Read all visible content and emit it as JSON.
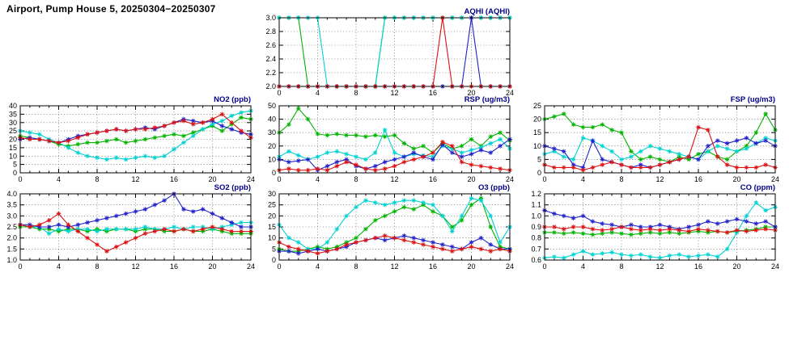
{
  "page_title": "Airport, Pump House 5, 20250304−20250307",
  "colors": {
    "green": "#00b400",
    "cyan": "#00d2d2",
    "blue": "#2222cc",
    "red": "#dd1111"
  },
  "chart_data": [
    {
      "id": "aqhi",
      "type": "line",
      "title": "AQHI (AQHI)",
      "xlim": [
        0,
        24
      ],
      "xticks": [
        0,
        4,
        8,
        12,
        16,
        20,
        24
      ],
      "ylim": [
        2.0,
        3.0
      ],
      "yticks": [
        2.0,
        2.2,
        2.4,
        2.6,
        2.8,
        3.0
      ],
      "ylabels": [
        "2.0",
        "2.2",
        "2.4",
        "2.6",
        "2.8",
        "3.0"
      ],
      "series": [
        {
          "name": "green",
          "color": "green",
          "values": [
            3,
            3,
            3,
            2,
            2,
            2,
            2,
            2,
            2,
            2,
            2,
            3,
            3,
            3,
            3,
            3,
            3,
            3,
            3,
            3,
            3,
            3,
            3,
            3,
            3
          ]
        },
        {
          "name": "cyan",
          "color": "cyan",
          "values": [
            3,
            3,
            3,
            3,
            3,
            2,
            2,
            2,
            2,
            2,
            2,
            3,
            3,
            3,
            3,
            3,
            3,
            3,
            3,
            3,
            3,
            3,
            3,
            3,
            3
          ]
        },
        {
          "name": "blue",
          "color": "blue",
          "values": [
            2,
            2,
            2,
            2,
            2,
            2,
            2,
            2,
            2,
            2,
            2,
            2,
            2,
            2,
            2,
            2,
            2,
            2,
            2,
            2,
            3,
            2,
            2,
            2,
            2
          ]
        },
        {
          "name": "red",
          "color": "red",
          "values": [
            2,
            2,
            2,
            2,
            2,
            2,
            2,
            2,
            2,
            2,
            2,
            2,
            2,
            2,
            2,
            2,
            2,
            3,
            2,
            2,
            2,
            2,
            2,
            2,
            2
          ]
        }
      ]
    },
    {
      "id": "no2",
      "type": "line",
      "title": "NO2 (ppb)",
      "xlim": [
        0,
        24
      ],
      "xticks": [
        0,
        4,
        8,
        12,
        16,
        20,
        24
      ],
      "ylim": [
        0,
        40
      ],
      "yticks": [
        0,
        5,
        10,
        15,
        20,
        25,
        30,
        35,
        40
      ],
      "ylabels": [
        "0",
        "5",
        "10",
        "15",
        "20",
        "25",
        "30",
        "35",
        "40"
      ],
      "series": [
        {
          "name": "green",
          "color": "green",
          "values": [
            22,
            21,
            20,
            19,
            17,
            16,
            17,
            18,
            18,
            19,
            20,
            18,
            19,
            20,
            21,
            22,
            23,
            22,
            24,
            26,
            28,
            25,
            29,
            33,
            32
          ]
        },
        {
          "name": "cyan",
          "color": "cyan",
          "values": [
            25,
            24,
            23,
            20,
            18,
            15,
            12,
            10,
            9,
            8,
            9,
            8,
            9,
            10,
            9,
            10,
            14,
            18,
            22,
            26,
            29,
            31,
            34,
            36,
            37
          ]
        },
        {
          "name": "blue",
          "color": "blue",
          "values": [
            20,
            21,
            20,
            19,
            18,
            20,
            22,
            23,
            24,
            25,
            26,
            25,
            26,
            27,
            26,
            28,
            30,
            32,
            31,
            30,
            31,
            28,
            26,
            24,
            23
          ]
        },
        {
          "name": "red",
          "color": "red",
          "values": [
            21,
            20,
            20,
            19,
            18,
            19,
            21,
            23,
            24,
            25,
            26,
            25,
            26,
            26,
            27,
            28,
            30,
            31,
            29,
            30,
            32,
            35,
            30,
            25,
            21
          ]
        }
      ]
    },
    {
      "id": "rsp",
      "type": "line",
      "title": "RSP (ug/m3)",
      "xlim": [
        0,
        24
      ],
      "xticks": [
        0,
        4,
        8,
        12,
        16,
        20,
        24
      ],
      "ylim": [
        0,
        50
      ],
      "yticks": [
        0,
        10,
        20,
        30,
        40,
        50
      ],
      "ylabels": [
        "0",
        "10",
        "20",
        "30",
        "40",
        "50"
      ],
      "series": [
        {
          "name": "green",
          "color": "green",
          "values": [
            30,
            36,
            48,
            40,
            29,
            28,
            29,
            28,
            28,
            27,
            28,
            27,
            28,
            22,
            18,
            20,
            15,
            22,
            18,
            20,
            25,
            20,
            27,
            30,
            24
          ]
        },
        {
          "name": "cyan",
          "color": "cyan",
          "values": [
            12,
            16,
            13,
            10,
            12,
            15,
            16,
            14,
            12,
            10,
            15,
            32,
            15,
            12,
            14,
            13,
            12,
            20,
            18,
            15,
            17,
            19,
            22,
            25,
            18
          ]
        },
        {
          "name": "blue",
          "color": "blue",
          "values": [
            10,
            8,
            9,
            10,
            2,
            5,
            8,
            10,
            5,
            3,
            5,
            8,
            10,
            12,
            15,
            12,
            10,
            21,
            15,
            12,
            14,
            17,
            15,
            20,
            25
          ]
        },
        {
          "name": "red",
          "color": "red",
          "values": [
            2,
            3,
            2,
            2,
            3,
            2,
            5,
            8,
            6,
            3,
            2,
            3,
            5,
            8,
            10,
            12,
            15,
            23,
            20,
            8,
            6,
            5,
            4,
            3,
            2
          ]
        }
      ]
    },
    {
      "id": "fsp",
      "type": "line",
      "title": "FSP (ug/m3)",
      "xlim": [
        0,
        24
      ],
      "xticks": [
        0,
        4,
        8,
        12,
        16,
        20,
        24
      ],
      "ylim": [
        0,
        25
      ],
      "yticks": [
        0,
        5,
        10,
        15,
        20,
        25
      ],
      "ylabels": [
        "0",
        "5",
        "10",
        "15",
        "20",
        "25"
      ],
      "series": [
        {
          "name": "green",
          "color": "green",
          "values": [
            20,
            21,
            22,
            18,
            17,
            17,
            18,
            16,
            15,
            8,
            5,
            6,
            5,
            4,
            6,
            5,
            7,
            8,
            6,
            5,
            8,
            10,
            15,
            22,
            16
          ]
        },
        {
          "name": "cyan",
          "color": "cyan",
          "values": [
            7,
            8,
            6,
            5,
            13,
            12,
            10,
            8,
            5,
            6,
            8,
            10,
            9,
            8,
            7,
            6,
            5,
            8,
            10,
            9,
            8,
            9,
            11,
            13,
            12
          ]
        },
        {
          "name": "blue",
          "color": "blue",
          "values": [
            10,
            9,
            8,
            3,
            2,
            12,
            5,
            4,
            3,
            2,
            3,
            2,
            3,
            4,
            5,
            6,
            5,
            10,
            12,
            11,
            12,
            13,
            11,
            12,
            10
          ]
        },
        {
          "name": "red",
          "color": "red",
          "values": [
            3,
            2,
            2,
            2,
            1,
            2,
            3,
            4,
            3,
            2,
            2,
            2,
            3,
            4,
            5,
            6,
            17,
            16,
            6,
            3,
            2,
            2,
            2,
            3,
            2
          ]
        }
      ]
    },
    {
      "id": "so2",
      "type": "line",
      "title": "SO2 (ppb)",
      "xlim": [
        0,
        24
      ],
      "xticks": [
        0,
        4,
        8,
        12,
        16,
        20,
        24
      ],
      "ylim": [
        1.0,
        4.0
      ],
      "yticks": [
        1.0,
        1.5,
        2.0,
        2.5,
        3.0,
        3.5,
        4.0
      ],
      "ylabels": [
        "1.0",
        "1.5",
        "2.0",
        "2.5",
        "3.0",
        "3.5",
        "4.0"
      ],
      "series": [
        {
          "name": "green",
          "color": "green",
          "values": [
            2.5,
            2.5,
            2.4,
            2.4,
            2.3,
            2.4,
            2.4,
            2.3,
            2.4,
            2.3,
            2.4,
            2.4,
            2.3,
            2.4,
            2.4,
            2.3,
            2.3,
            2.4,
            2.3,
            2.3,
            2.4,
            2.3,
            2.2,
            2.2,
            2.2
          ]
        },
        {
          "name": "cyan",
          "color": "cyan",
          "values": [
            2.6,
            2.5,
            2.5,
            2.2,
            2.4,
            2.3,
            2.4,
            2.4,
            2.3,
            2.4,
            2.4,
            2.4,
            2.4,
            2.5,
            2.4,
            2.4,
            2.5,
            2.4,
            2.5,
            2.5,
            2.4,
            2.5,
            2.6,
            2.7,
            2.7
          ]
        },
        {
          "name": "blue",
          "color": "blue",
          "values": [
            2.6,
            2.6,
            2.5,
            2.5,
            2.6,
            2.5,
            2.6,
            2.7,
            2.8,
            2.9,
            3.0,
            3.1,
            3.2,
            3.3,
            3.5,
            3.7,
            4.0,
            3.3,
            3.2,
            3.3,
            3.1,
            2.9,
            2.7,
            2.5,
            2.5
          ]
        },
        {
          "name": "red",
          "color": "red",
          "values": [
            2.6,
            2.5,
            2.6,
            2.8,
            3.1,
            2.6,
            2.3,
            2.0,
            1.7,
            1.4,
            1.6,
            1.8,
            2.0,
            2.2,
            2.3,
            2.4,
            2.3,
            2.4,
            2.3,
            2.4,
            2.5,
            2.4,
            2.3,
            2.3,
            2.3
          ]
        }
      ]
    },
    {
      "id": "o3",
      "type": "line",
      "title": "O3 (ppb)",
      "xlim": [
        0,
        24
      ],
      "xticks": [
        0,
        4,
        8,
        12,
        16,
        20,
        24
      ],
      "ylim": [
        0,
        30
      ],
      "yticks": [
        0,
        5,
        10,
        15,
        20,
        25,
        30
      ],
      "ylabels": [
        "0",
        "5",
        "10",
        "15",
        "20",
        "25",
        "30"
      ],
      "series": [
        {
          "name": "green",
          "color": "green",
          "values": [
            5,
            4,
            4,
            5,
            6,
            5,
            6,
            8,
            10,
            14,
            18,
            20,
            22,
            24,
            23,
            25,
            22,
            20,
            15,
            18,
            25,
            28,
            15,
            6,
            5
          ]
        },
        {
          "name": "cyan",
          "color": "cyan",
          "values": [
            16,
            10,
            8,
            5,
            5,
            8,
            14,
            20,
            24,
            27,
            26,
            25,
            26,
            27,
            27,
            26,
            25,
            20,
            13,
            20,
            28,
            27,
            20,
            8,
            15
          ]
        },
        {
          "name": "blue",
          "color": "blue",
          "values": [
            4,
            4,
            3,
            4,
            5,
            4,
            5,
            6,
            8,
            9,
            10,
            9,
            10,
            11,
            10,
            9,
            8,
            7,
            6,
            5,
            8,
            10,
            7,
            5,
            5
          ]
        },
        {
          "name": "red",
          "color": "red",
          "values": [
            8,
            6,
            5,
            4,
            3,
            4,
            5,
            7,
            8,
            9,
            10,
            11,
            10,
            9,
            8,
            7,
            6,
            5,
            4,
            5,
            6,
            5,
            4,
            5,
            4
          ]
        }
      ]
    },
    {
      "id": "co",
      "type": "line",
      "title": "CO (ppm)",
      "xlim": [
        0,
        24
      ],
      "xticks": [
        0,
        4,
        8,
        12,
        16,
        20,
        24
      ],
      "ylim": [
        0.6,
        1.2
      ],
      "yticks": [
        0.6,
        0.7,
        0.8,
        0.9,
        1.0,
        1.1,
        1.2
      ],
      "ylabels": [
        "0.6",
        "0.7",
        "0.8",
        "0.9",
        "1.0",
        "1.1",
        "1.2"
      ],
      "series": [
        {
          "name": "green",
          "color": "green",
          "values": [
            0.85,
            0.85,
            0.84,
            0.85,
            0.84,
            0.83,
            0.84,
            0.85,
            0.84,
            0.83,
            0.84,
            0.85,
            0.84,
            0.85,
            0.84,
            0.85,
            0.86,
            0.85,
            0.86,
            0.85,
            0.86,
            0.87,
            0.88,
            0.9,
            0.9
          ]
        },
        {
          "name": "cyan",
          "color": "cyan",
          "values": [
            0.62,
            0.63,
            0.62,
            0.65,
            0.68,
            0.65,
            0.66,
            0.67,
            0.65,
            0.64,
            0.65,
            0.63,
            0.62,
            0.64,
            0.65,
            0.63,
            0.64,
            0.65,
            0.63,
            0.7,
            0.85,
            1.0,
            1.12,
            1.05,
            1.08
          ]
        },
        {
          "name": "blue",
          "color": "blue",
          "values": [
            1.05,
            1.02,
            1.0,
            0.98,
            1.0,
            0.95,
            0.93,
            0.92,
            0.9,
            0.92,
            0.9,
            0.9,
            0.92,
            0.9,
            0.88,
            0.9,
            0.92,
            0.95,
            0.93,
            0.95,
            0.97,
            0.95,
            0.93,
            0.95,
            0.9
          ]
        },
        {
          "name": "red",
          "color": "red",
          "values": [
            0.9,
            0.9,
            0.88,
            0.9,
            0.9,
            0.88,
            0.87,
            0.88,
            0.9,
            0.88,
            0.87,
            0.88,
            0.87,
            0.88,
            0.87,
            0.86,
            0.88,
            0.87,
            0.86,
            0.85,
            0.87,
            0.86,
            0.87,
            0.88,
            0.87
          ]
        }
      ]
    }
  ]
}
